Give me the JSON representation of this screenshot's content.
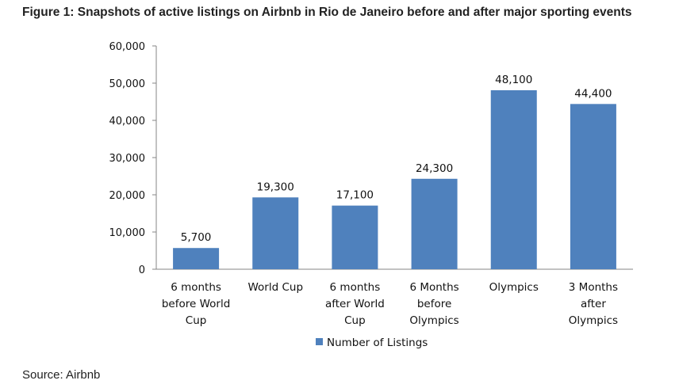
{
  "figure": {
    "title": "Figure 1: Snapshots of active listings on Airbnb in Rio de Janeiro before and after major sporting events",
    "source": "Source: Airbnb"
  },
  "chart_data": {
    "type": "bar",
    "title": "",
    "xlabel": "",
    "ylabel": "",
    "categories": [
      [
        "6 months",
        "before World",
        "Cup"
      ],
      [
        "World Cup"
      ],
      [
        "6 months",
        "after World",
        "Cup"
      ],
      [
        "6 Months",
        "before",
        "Olympics"
      ],
      [
        "Olympics"
      ],
      [
        "3 Months",
        "after",
        "Olympics"
      ]
    ],
    "series": [
      {
        "name": "Number of Listings",
        "values": [
          5700,
          19300,
          17100,
          24300,
          48100,
          44400
        ],
        "color": "#4f81bd"
      }
    ],
    "data_labels": [
      "5,700",
      "19,300",
      "17,100",
      "24,300",
      "48,100",
      "44,400"
    ],
    "ylim": [
      0,
      60000
    ],
    "yticks": [
      0,
      10000,
      20000,
      30000,
      40000,
      50000,
      60000
    ],
    "ytick_labels": [
      "0",
      "10,000",
      "20,000",
      "30,000",
      "40,000",
      "50,000",
      "60,000"
    ],
    "grid": false,
    "legend": "bottom-center"
  }
}
